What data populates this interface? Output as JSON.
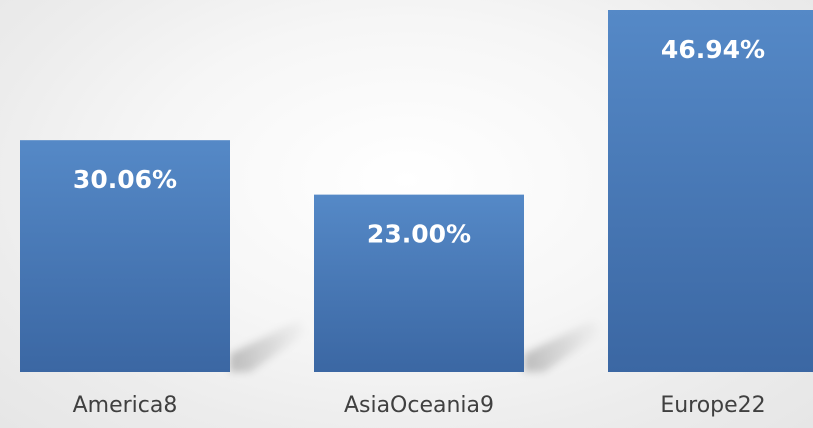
{
  "chart_data": {
    "type": "bar",
    "categories": [
      "America8",
      "AsiaOceania9",
      "Europe22"
    ],
    "values": [
      30.06,
      23.0,
      46.94
    ],
    "value_labels": [
      "30.06%",
      "23.00%",
      "46.94%"
    ],
    "unit": "%",
    "title": "",
    "xlabel": "",
    "ylabel": "",
    "ylim": [
      0,
      46.94
    ],
    "grid": false,
    "legend": "none",
    "colors": {
      "bar_top": "#5589c7",
      "bar_bottom": "#3b67a3",
      "label": "#ffffff",
      "category_text": "#404040"
    }
  }
}
